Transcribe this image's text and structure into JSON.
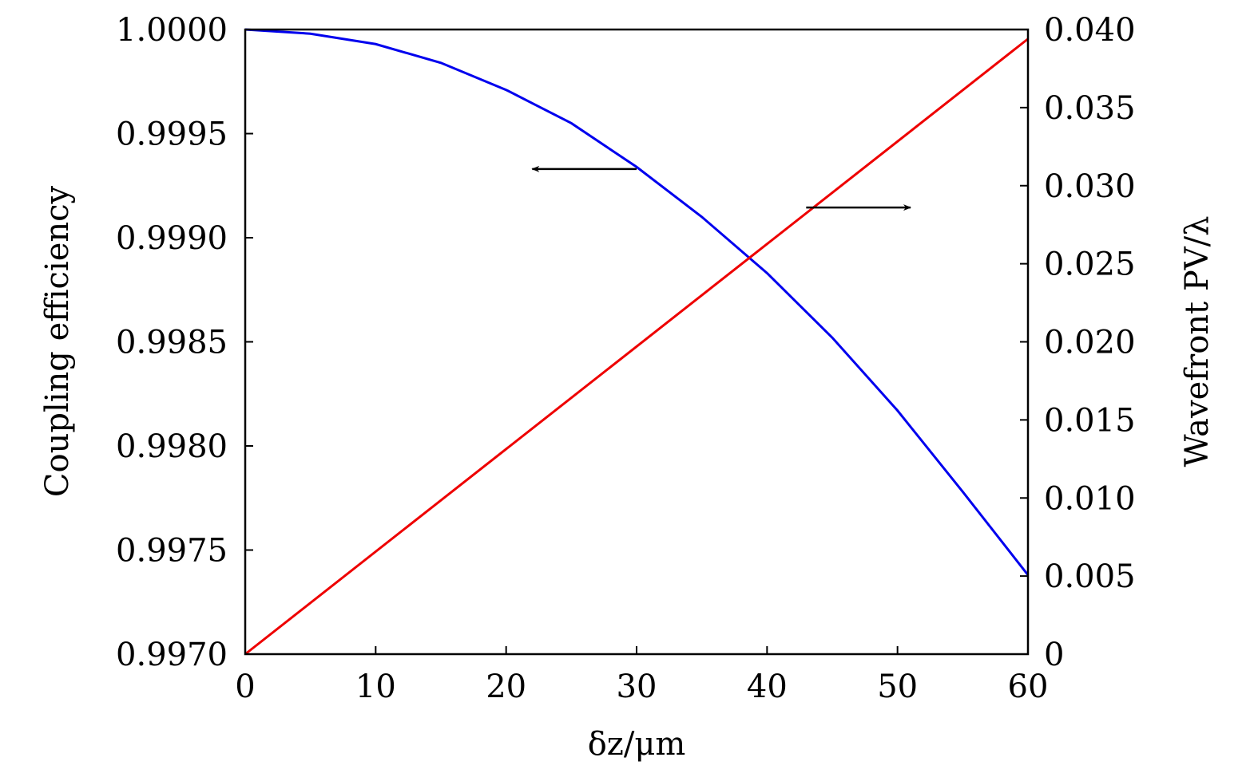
{
  "chart_data": {
    "type": "line",
    "xlabel": "δz/μm",
    "ylabel": "Coupling efficiency",
    "y2label": "Wavefront PV/λ",
    "xlim": [
      0,
      60
    ],
    "ylim": [
      0.997,
      1.0
    ],
    "y2lim": [
      0,
      0.04
    ],
    "xticks": [
      "0",
      "10",
      "20",
      "30",
      "40",
      "50",
      "60"
    ],
    "yticks": [
      "0.9970",
      "0.9975",
      "0.9980",
      "0.9985",
      "0.9990",
      "0.9995",
      "1.0000"
    ],
    "y2ticks": [
      "0",
      "0.005",
      "0.010",
      "0.015",
      "0.020",
      "0.025",
      "0.030",
      "0.035",
      "0.040"
    ],
    "grid": false,
    "series": [
      {
        "name": "Coupling efficiency",
        "axis": "left",
        "color": "#0000ee",
        "x": [
          0,
          5,
          10,
          15,
          20,
          25,
          30,
          35,
          40,
          45,
          50,
          55,
          60
        ],
        "y": [
          1.0,
          0.99998,
          0.99993,
          0.99984,
          0.99971,
          0.99955,
          0.99934,
          0.9991,
          0.99883,
          0.99852,
          0.99817,
          0.99778,
          0.99738
        ]
      },
      {
        "name": "Wavefront PV/λ",
        "axis": "right",
        "color": "#ee0000",
        "x": [
          0,
          60
        ],
        "y": [
          0,
          0.0394
        ]
      }
    ],
    "annotations": [
      {
        "type": "arrow",
        "direction": "left",
        "points_to": "left axis",
        "from": [
          30,
          0.99933
        ],
        "to": [
          22,
          0.99933
        ]
      },
      {
        "type": "arrow",
        "direction": "right",
        "points_to": "right axis",
        "from": [
          43,
          0.0286
        ],
        "to": [
          51,
          0.0286
        ]
      }
    ]
  }
}
